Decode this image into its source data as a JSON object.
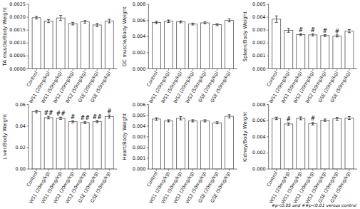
{
  "chart_data": [
    {
      "type": "bar",
      "y_label": "TA muscle/Body Weight",
      "color": "#FFFFFF",
      "categories": [
        "Control",
        "WS1 (20mg/kg)",
        "WS1 (50mg/kg)",
        "WS2 (20mg/kg)",
        "WS2 (50mg/kg)",
        "GSE (20mg/kg)",
        "GSE (50mg/kg)"
      ],
      "values": [
        0.00198,
        0.00185,
        0.00197,
        0.00175,
        0.00182,
        0.0017,
        0.00185
      ],
      "errors": [
        5e-05,
        6e-05,
        0.0001,
        5e-05,
        5e-05,
        6e-05,
        7e-05
      ],
      "ylim": [
        0,
        0.0025
      ],
      "yticks": [
        {
          "value": 0,
          "label": "0.0000"
        },
        0.0005,
        {
          "value": 0.001,
          "label": "0.0010"
        },
        0.0015,
        {
          "value": 0.002,
          "label": "0.0020"
        },
        0.0025
      ]
    },
    {
      "type": "bar",
      "y_label": "GC muscle/Body Weight",
      "color": "#FFFFFF",
      "categories": [
        "Control",
        "WS1 (20mg/kg)",
        "WS1 (50mg/kg)",
        "WS2 (20mg/kg)",
        "WS2 (50mg/kg)",
        "GSE (20mg/kg)",
        "GSE (50mg/kg)"
      ],
      "values": [
        0.00575,
        0.0059,
        0.00582,
        0.00555,
        0.0057,
        0.00548,
        0.006
      ],
      "errors": [
        0.00015,
        0.00015,
        0.00012,
        0.00012,
        0.00012,
        0.00012,
        0.00018
      ],
      "ylim": [
        0,
        0.008
      ],
      "yticks": [
        {
          "value": 0,
          "label": "0.000"
        },
        0.002,
        0.004,
        0.006,
        0.008
      ]
    },
    {
      "type": "bar",
      "y_label": "Spleen/Body Weight",
      "color": "#FFFFFF",
      "categories": [
        "Control",
        "WS1 (20mg/kg)",
        "WS1 (50mg/kg)",
        "WS2 (20mg/kg)",
        "WS2 (50mg/kg)",
        "GSE (20mg/kg)",
        "GSE (50mg/kg)"
      ],
      "values": [
        0.00385,
        0.00298,
        0.00265,
        0.00263,
        0.00258,
        0.00255,
        0.00292
      ],
      "errors": [
        0.00025,
        0.00015,
        8e-05,
        8e-05,
        8e-05,
        8e-05,
        0.00012
      ],
      "significance": [
        null,
        null,
        "#",
        "#",
        "#",
        "#",
        null
      ],
      "ylim": [
        0,
        0.005
      ],
      "yticks": [
        {
          "value": 0,
          "label": "0.000"
        },
        0.001,
        0.002,
        0.003,
        0.004,
        0.005
      ]
    },
    {
      "type": "bar",
      "y_label": "Liver/Body Weight",
      "color": "#FFFFFF",
      "categories": [
        "Control",
        "WS1 (20mg/kg)",
        "WS1 (50mg/kg)",
        "WS2 (20mg/kg)",
        "WS2 (50mg/kg)",
        "GSE (20mg/kg)",
        "GSE (50mg/kg)"
      ],
      "values": [
        0.0535,
        0.0478,
        0.0472,
        0.044,
        0.0432,
        0.0442,
        0.0488
      ],
      "errors": [
        0.0012,
        0.0012,
        0.001,
        0.001,
        0.001,
        0.001,
        0.0015
      ],
      "significance": [
        null,
        "##",
        "##",
        "#",
        "##",
        "##",
        "#"
      ],
      "ylim": [
        0,
        0.06
      ],
      "yticks": [
        {
          "value": 0,
          "label": "0.00"
        },
        0.02,
        0.04,
        0.06
      ]
    },
    {
      "type": "bar",
      "y_label": "Heart/Body Weight",
      "color": "#FFFFFF",
      "categories": [
        "Control",
        "WS1 (20mg/kg)",
        "WS1 (50mg/kg)",
        "WS2 (20mg/kg)",
        "WS2 (50mg/kg)",
        "GSE (20mg/kg)",
        "GSE (50mg/kg)"
      ],
      "values": [
        0.00465,
        0.00448,
        0.00472,
        0.00448,
        0.00448,
        0.0043,
        0.0049
      ],
      "errors": [
        0.00012,
        0.0001,
        0.00015,
        0.0001,
        0.0001,
        0.0001,
        0.00015
      ],
      "ylim": [
        0,
        0.006
      ],
      "yticks": [
        {
          "value": 0,
          "label": "0.000"
        },
        0.001,
        0.002,
        0.003,
        0.004,
        0.005,
        0.006
      ]
    },
    {
      "type": "bar",
      "y_label": "Kidney/Body Weight",
      "color": "#FFFFFF",
      "categories": [
        "Control",
        "WS1 (20mg/kg)",
        "WS1 (50mg/kg)",
        "WS2 (20mg/kg)",
        "WS2 (50mg/kg)",
        "GSE (20mg/kg)",
        "GSE (50mg/kg)"
      ],
      "values": [
        0.00628,
        0.00558,
        0.00628,
        0.00562,
        0.00605,
        0.00622,
        0.00632
      ],
      "errors": [
        0.00015,
        0.00015,
        0.00018,
        0.00015,
        0.00015,
        0.00018,
        0.00018
      ],
      "significance": [
        null,
        "#",
        null,
        "#",
        null,
        null,
        null
      ],
      "ylim": [
        0,
        0.008
      ],
      "yticks": [
        {
          "value": 0,
          "label": "0.000"
        },
        0.002,
        0.004,
        0.006,
        0.008
      ],
      "annotations": [
        "#p<0.05 and ##p<0.01 versus control"
      ]
    }
  ]
}
